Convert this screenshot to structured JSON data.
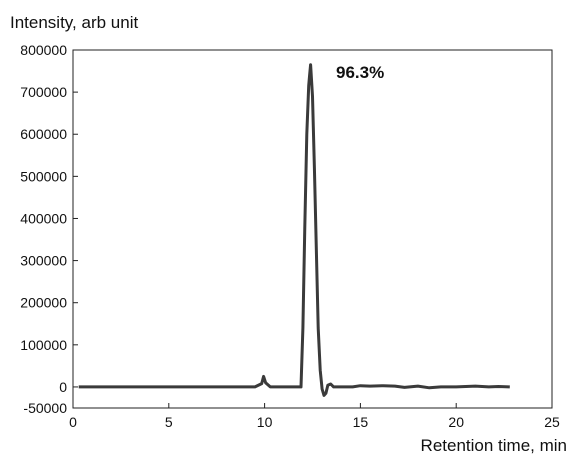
{
  "chart_data": {
    "type": "line",
    "ylabel": "Intensity, arb unit",
    "xlabel": "Retention time, min",
    "xlim": [
      0,
      25
    ],
    "ylim": [
      -50000,
      800000
    ],
    "x_ticks": [
      0,
      5,
      10,
      15,
      20,
      25
    ],
    "y_ticks": [
      -50000,
      0,
      100000,
      200000,
      300000,
      400000,
      500000,
      600000,
      700000,
      800000
    ],
    "grid": false,
    "annotations": [
      {
        "text": "96.3%",
        "x": 13.8,
        "y": 735000
      }
    ],
    "series": [
      {
        "color": "#3a3a3a",
        "x": [
          0.3,
          2,
          4,
          6,
          8,
          9.5,
          9.85,
          9.95,
          10.05,
          10.3,
          11,
          11.9,
          12.0,
          12.1,
          12.2,
          12.3,
          12.35,
          12.4,
          12.5,
          12.6,
          12.7,
          12.8,
          12.9,
          13.0,
          13.1,
          13.2,
          13.3,
          13.45,
          13.6,
          14,
          14.6,
          15,
          15.5,
          16.2,
          16.8,
          17.3,
          18.0,
          18.6,
          19.2,
          20,
          21,
          21.7,
          22.2,
          22.8
        ],
        "y": [
          0,
          0,
          0,
          0,
          0,
          0,
          8000,
          25000,
          10000,
          0,
          0,
          0,
          140000,
          380000,
          600000,
          715000,
          740000,
          765000,
          690000,
          520000,
          330000,
          140000,
          40000,
          -5000,
          -20000,
          -15000,
          4000,
          7000,
          0,
          0,
          0,
          3000,
          2000,
          3000,
          2000,
          -1000,
          2000,
          -2000,
          0,
          0,
          2000,
          0,
          1000,
          0
        ]
      }
    ]
  }
}
